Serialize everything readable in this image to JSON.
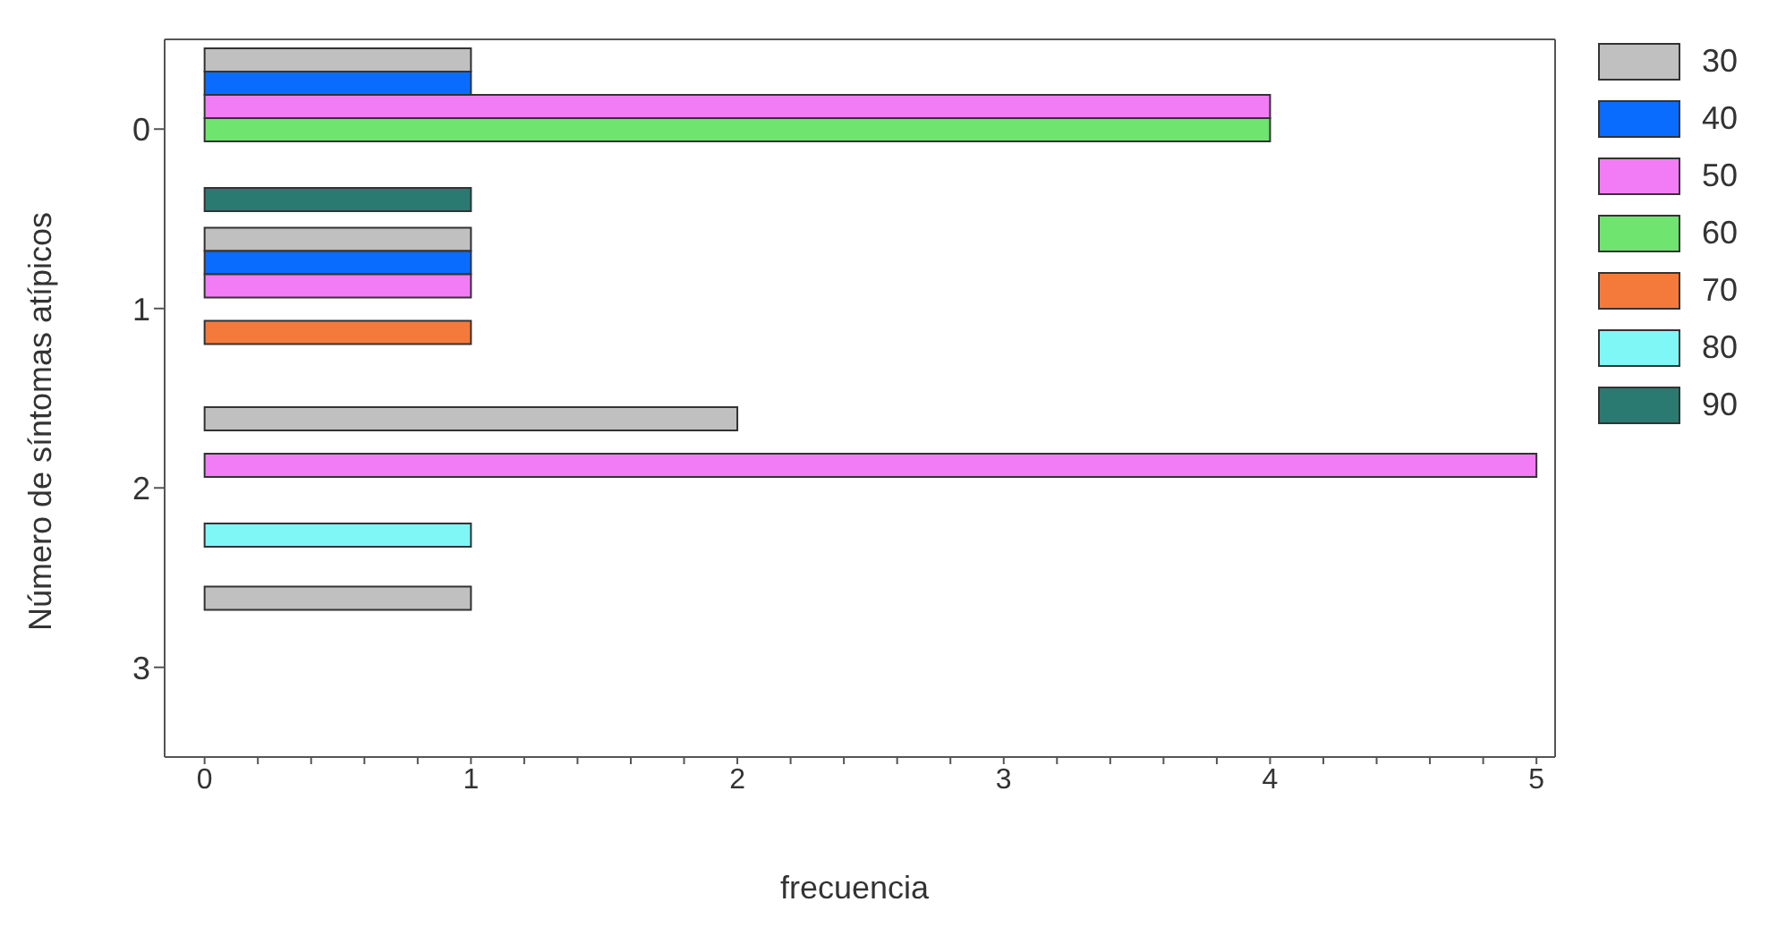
{
  "chart_data": {
    "type": "bar",
    "orientation": "horizontal",
    "xlabel": "frecuencia",
    "ylabel": "Número de síntomas atípicos",
    "categories": [
      "0",
      "1",
      "2",
      "3"
    ],
    "series": [
      {
        "name": "30",
        "color": "#c0c0c0",
        "values": [
          1,
          1,
          2,
          1
        ]
      },
      {
        "name": "40",
        "color": "#0a6cff",
        "values": [
          1,
          1,
          0,
          0
        ]
      },
      {
        "name": "50",
        "color": "#f27cf5",
        "values": [
          4,
          1,
          5,
          0
        ]
      },
      {
        "name": "60",
        "color": "#6fe46f",
        "values": [
          4,
          0,
          0,
          0
        ]
      },
      {
        "name": "70",
        "color": "#f47a3c",
        "values": [
          0,
          1,
          0,
          0
        ]
      },
      {
        "name": "80",
        "color": "#7ff7f7",
        "values": [
          0,
          0,
          1,
          0
        ]
      },
      {
        "name": "90",
        "color": "#2a7a72",
        "values": [
          1,
          0,
          0,
          0
        ]
      }
    ],
    "xlim": [
      -0.15,
      5.07
    ],
    "xticks": [
      0,
      {
        "value": 0.2,
        "label": null
      },
      {
        "value": 0.4,
        "label": null
      },
      {
        "value": 0.6,
        "label": null
      },
      {
        "value": 0.8,
        "label": null
      },
      1,
      {
        "value": 1.2,
        "label": null
      },
      {
        "value": 1.4,
        "label": null
      },
      {
        "value": 1.6,
        "label": null
      },
      {
        "value": 1.8,
        "label": null
      },
      2,
      {
        "value": 2.2,
        "label": null
      },
      {
        "value": 2.4,
        "label": null
      },
      {
        "value": 2.6,
        "label": null
      },
      {
        "value": 2.8,
        "label": null
      },
      3,
      {
        "value": 3.2,
        "label": null
      },
      {
        "value": 3.4,
        "label": null
      },
      {
        "value": 3.6,
        "label": null
      },
      {
        "value": 3.8,
        "label": null
      },
      4,
      {
        "value": 4.2,
        "label": null
      },
      {
        "value": 4.4,
        "label": null
      },
      {
        "value": 4.6,
        "label": null
      },
      {
        "value": 4.8,
        "label": null
      },
      5
    ],
    "grid": false,
    "legend": "right"
  }
}
